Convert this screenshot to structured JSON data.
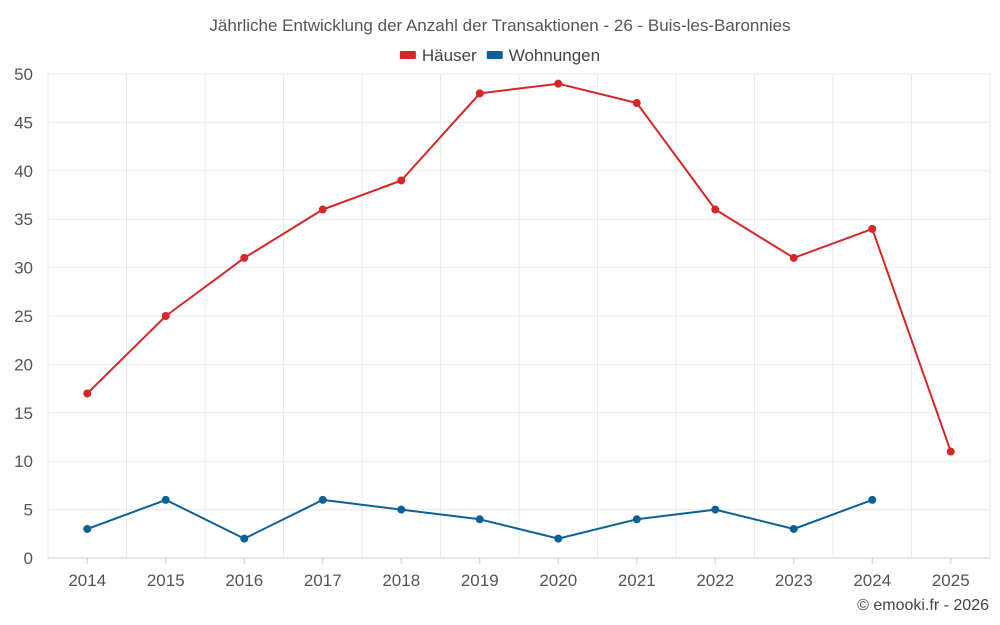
{
  "chart_data": {
    "type": "line",
    "title": "Jährliche Entwicklung der Anzahl der Transaktionen - 26 - Buis-les-Baronnies",
    "categories": [
      "2014",
      "2015",
      "2016",
      "2017",
      "2018",
      "2019",
      "2020",
      "2021",
      "2022",
      "2023",
      "2024",
      "2025"
    ],
    "series": [
      {
        "name": "Häuser",
        "color": "#d62728",
        "values": [
          17,
          25,
          31,
          36,
          39,
          48,
          49,
          47,
          36,
          31,
          34,
          11
        ]
      },
      {
        "name": "Wohnungen",
        "color": "#0c6196",
        "values": [
          3,
          6,
          2,
          6,
          5,
          4,
          2,
          4,
          5,
          3,
          6,
          null
        ]
      }
    ],
    "ylim": [
      0,
      50
    ],
    "yticks": [
      0,
      5,
      10,
      15,
      20,
      25,
      30,
      35,
      40,
      45,
      50
    ],
    "xlabel": "",
    "ylabel": "",
    "grid": true,
    "legend_position": "top-center"
  },
  "credit": "© emooki.fr - 2026"
}
